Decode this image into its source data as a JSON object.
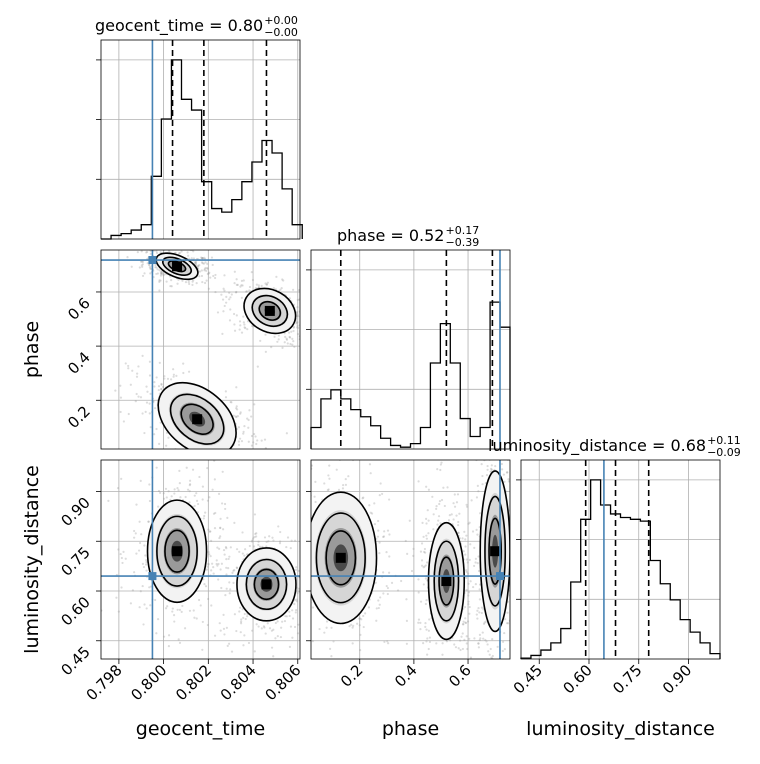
{
  "chart_data": {
    "type": "corner",
    "parameters": [
      "geocent_time",
      "phase",
      "luminosity_distance"
    ],
    "truths": {
      "geocent_time": 0.7995,
      "phase": 0.718,
      "luminosity_distance": 0.645
    },
    "grid": true,
    "titles": [
      {
        "name": "geocent_time",
        "prefix": "geocent_time = 0.80",
        "plus": "+0.00",
        "minus": "−0.00"
      },
      {
        "name": "phase",
        "prefix": "phase = 0.52",
        "plus": "+0.17",
        "minus": "−0.39"
      },
      {
        "name": "luminosity_distance",
        "prefix": "luminosity_distance = 0.68",
        "plus": "+0.11",
        "minus": "−0.09"
      }
    ],
    "axes": {
      "geocent_time": {
        "range": [
          0.7972,
          0.8061
        ],
        "ticks": [
          0.798,
          0.8,
          0.802,
          0.804,
          0.806
        ],
        "tick_labels": [
          "0.798",
          "0.800",
          "0.802",
          "0.804",
          "0.806"
        ]
      },
      "phase": {
        "range": [
          0.02,
          0.755
        ],
        "ticks": [
          0.2,
          0.4,
          0.6
        ],
        "tick_labels": [
          "0.2",
          "0.4",
          "0.6"
        ],
        "x_ticks": [
          0.2,
          0.4,
          0.6
        ],
        "x_tick_labels": [
          "0.2",
          "0.4",
          "0.6"
        ]
      },
      "luminosity_distance": {
        "range": [
          0.395,
          0.995
        ],
        "ticks": [
          0.45,
          0.6,
          0.75,
          0.9
        ],
        "tick_labels": [
          "0.45",
          "0.60",
          "0.75",
          "0.90"
        ]
      }
    },
    "marginals": {
      "geocent_time": {
        "quantiles": [
          0.8004,
          0.8018,
          0.8046
        ],
        "edges": [
          0.7972,
          0.79765,
          0.7981,
          0.79855,
          0.799,
          0.79945,
          0.7999,
          0.80035,
          0.8008,
          0.80125,
          0.8017,
          0.80215,
          0.8026,
          0.80305,
          0.8035,
          0.80395,
          0.8044,
          0.80485,
          0.8053,
          0.80575,
          0.8062
        ],
        "counts": [
          0,
          0.02,
          0.03,
          0.05,
          0.08,
          0.35,
          0.67,
          1.0,
          0.78,
          0.72,
          0.32,
          0.17,
          0.15,
          0.22,
          0.32,
          0.43,
          0.55,
          0.48,
          0.28,
          0.08
        ]
      },
      "phase": {
        "quantiles": [
          0.13,
          0.52,
          0.69
        ],
        "edges": [
          0.02,
          0.0567,
          0.0935,
          0.1302,
          0.167,
          0.2037,
          0.2405,
          0.2772,
          0.314,
          0.3507,
          0.3875,
          0.4243,
          0.461,
          0.4978,
          0.5345,
          0.5713,
          0.608,
          0.6448,
          0.6815,
          0.7183,
          0.755
        ],
        "counts": [
          0.12,
          0.28,
          0.33,
          0.28,
          0.22,
          0.18,
          0.13,
          0.06,
          0.02,
          0.01,
          0.03,
          0.12,
          0.48,
          0.7,
          0.48,
          0.17,
          0.07,
          0.12,
          0.82,
          0.68
        ]
      },
      "luminosity_distance": {
        "quantiles": [
          0.59,
          0.68,
          0.78
        ],
        "edges": [
          0.395,
          0.425,
          0.455,
          0.485,
          0.515,
          0.545,
          0.575,
          0.605,
          0.635,
          0.665,
          0.695,
          0.725,
          0.755,
          0.785,
          0.815,
          0.845,
          0.875,
          0.905,
          0.935,
          0.965,
          0.995
        ],
        "counts": [
          0.005,
          0.02,
          0.05,
          0.09,
          0.17,
          0.43,
          0.78,
          1.0,
          0.86,
          0.81,
          0.79,
          0.78,
          0.77,
          0.55,
          0.42,
          0.33,
          0.22,
          0.15,
          0.09,
          0.03
        ]
      }
    },
    "density_2d": [
      {
        "x": "geocent_time",
        "y": "phase",
        "modes": [
          {
            "cx": 0.8006,
            "cy": 0.695,
            "sx": 0.00045,
            "sy": 0.018,
            "rho": -0.3
          },
          {
            "cx": 0.80475,
            "cy": 0.53,
            "sx": 0.00055,
            "sy": 0.035,
            "rho": -0.4
          },
          {
            "cx": 0.8015,
            "cy": 0.13,
            "sx": 0.0009,
            "sy": 0.05,
            "rho": -0.6
          }
        ]
      },
      {
        "x": "geocent_time",
        "y": "luminosity_distance",
        "modes": [
          {
            "cx": 0.8006,
            "cy": 0.72,
            "sx": 0.0006,
            "sy": 0.07,
            "rho": 0.0
          },
          {
            "cx": 0.8046,
            "cy": 0.62,
            "sx": 0.0006,
            "sy": 0.05,
            "rho": 0.0
          }
        ]
      },
      {
        "x": "phase",
        "y": "luminosity_distance",
        "modes": [
          {
            "cx": 0.13,
            "cy": 0.7,
            "sx": 0.06,
            "sy": 0.09,
            "rho": 0.0
          },
          {
            "cx": 0.52,
            "cy": 0.63,
            "sx": 0.03,
            "sy": 0.08,
            "rho": 0.0
          },
          {
            "cx": 0.7,
            "cy": 0.72,
            "sx": 0.025,
            "sy": 0.11,
            "rho": 0.0
          }
        ]
      }
    ]
  }
}
